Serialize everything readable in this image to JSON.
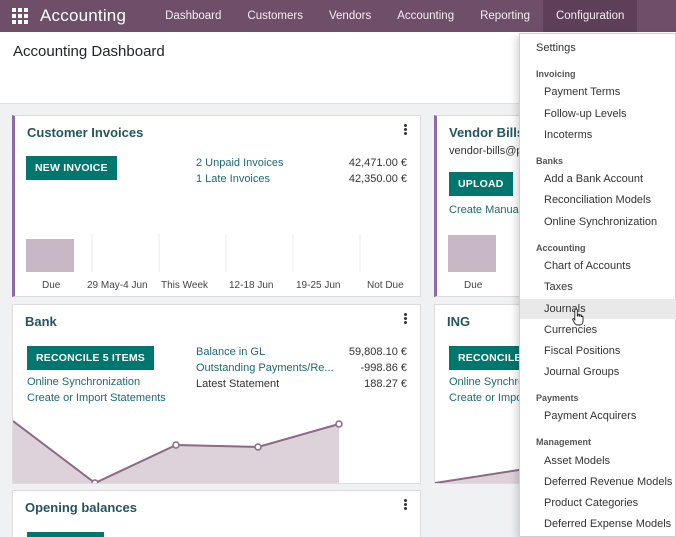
{
  "navbar": {
    "brand": "Accounting",
    "items": [
      "Dashboard",
      "Customers",
      "Vendors",
      "Accounting",
      "Reporting",
      "Configuration"
    ],
    "active": "Configuration",
    "color": "#6f4e6a"
  },
  "control_panel": {
    "title": "Accounting Dashboard"
  },
  "customer_invoices": {
    "title": "Customer Invoices",
    "button": "NEW INVOICE",
    "rows": [
      {
        "label": "2 Unpaid Invoices",
        "amount": "42,471.00 €"
      },
      {
        "label": "1 Late Invoices",
        "amount": "42,350.00 €"
      }
    ],
    "chart_labels": [
      "Due",
      "29 May-4 Jun",
      "This Week",
      "12-18 Jun",
      "19-25 Jun",
      "Not Due"
    ]
  },
  "vendor_bills": {
    "title": "Vendor Bills",
    "email": "vendor-bills@p",
    "button": "UPLOAD",
    "link": "Create Manual",
    "chart_labels": [
      "Due"
    ]
  },
  "bank": {
    "title": "Bank",
    "button": "RECONCILE 5 ITEMS",
    "links": [
      "Online Synchronization",
      "Create or Import Statements"
    ],
    "rows": [
      {
        "label": "Balance in GL",
        "amount": "59,808.10 €"
      },
      {
        "label": "Outstanding Payments/Re...",
        "amount": "-998.86 €"
      },
      {
        "label": "Latest Statement",
        "amount": "188.27 €"
      }
    ]
  },
  "ing": {
    "title": "ING",
    "button": "RECONCILE",
    "links": [
      "Online Synchro",
      "Create or Impo"
    ]
  },
  "opening_balances": {
    "title": "Opening balances"
  },
  "dropdown": {
    "settings": "Settings",
    "sections": [
      {
        "header": "Invoicing",
        "items": [
          "Payment Terms",
          "Follow-up Levels",
          "Incoterms"
        ]
      },
      {
        "header": "Banks",
        "items": [
          "Add a Bank Account",
          "Reconciliation Models",
          "Online Synchronization"
        ]
      },
      {
        "header": "Accounting",
        "items": [
          "Chart of Accounts",
          "Taxes",
          "Journals",
          "Currencies",
          "Fiscal Positions",
          "Journal Groups"
        ]
      },
      {
        "header": "Payments",
        "items": [
          "Payment Acquirers"
        ]
      },
      {
        "header": "Management",
        "items": [
          "Asset Models",
          "Deferred Revenue Models",
          "Product Categories",
          "Deferred Expense Models"
        ]
      }
    ],
    "hovered": "Journals"
  },
  "colors": {
    "accent": "#00776e",
    "title": "#26545e",
    "chart_fill": "#c8b7c4",
    "chart_line": "#8a6a85"
  }
}
